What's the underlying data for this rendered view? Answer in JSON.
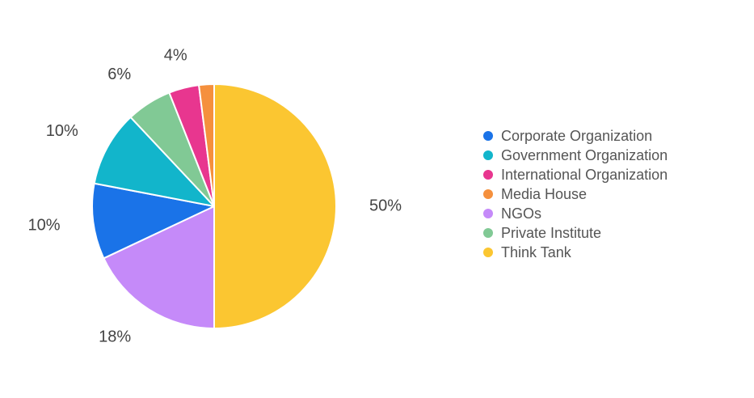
{
  "chart_data": {
    "type": "pie",
    "title": "",
    "start_angle_deg": 0,
    "direction": "clockwise",
    "legend_position": "right",
    "slices": [
      {
        "label": "Think Tank",
        "value": 50,
        "display": "50%",
        "color": "#FBC631"
      },
      {
        "label": "NGOs",
        "value": 18,
        "display": "18%",
        "color": "#C58AF9"
      },
      {
        "label": "Corporate Organization",
        "value": 10,
        "display": "10%",
        "color": "#1A73E8"
      },
      {
        "label": "Government Organization",
        "value": 10,
        "display": "10%",
        "color": "#12B5CB"
      },
      {
        "label": "Private Institute",
        "value": 6,
        "display": "6%",
        "color": "#81C995"
      },
      {
        "label": "International Organization",
        "value": 4,
        "display": "4%",
        "color": "#E8368F"
      },
      {
        "label": "Media House",
        "value": 2,
        "display": "",
        "color": "#F5903D"
      }
    ],
    "legend": [
      {
        "label": "Corporate Organization",
        "color": "#1A73E8"
      },
      {
        "label": "Government Organization",
        "color": "#12B5CB"
      },
      {
        "label": "International Organization",
        "color": "#E8368F"
      },
      {
        "label": "Media House",
        "color": "#F5903D"
      },
      {
        "label": "NGOs",
        "color": "#C58AF9"
      },
      {
        "label": "Private Institute",
        "color": "#81C995"
      },
      {
        "label": "Think Tank",
        "color": "#FBC631"
      }
    ]
  }
}
